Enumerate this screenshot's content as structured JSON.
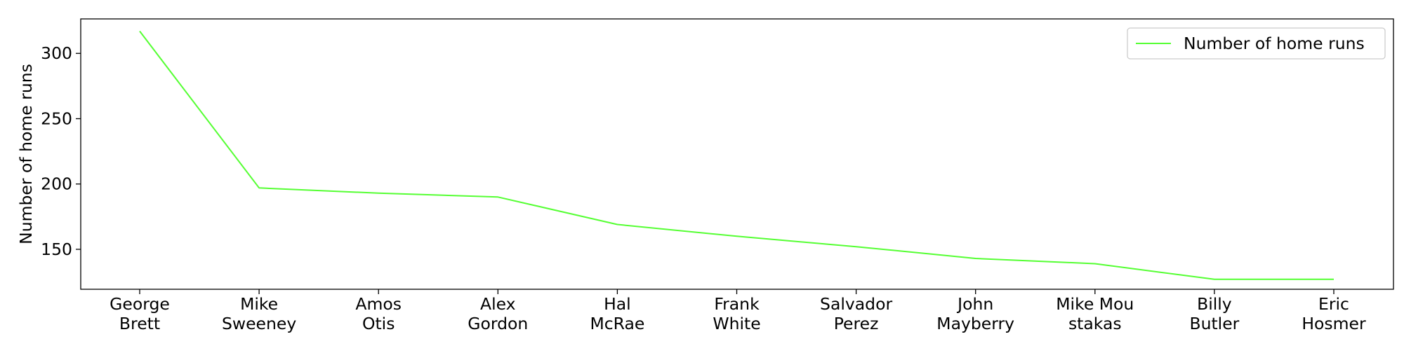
{
  "chart_data": {
    "type": "line",
    "categories": [
      [
        "George",
        "Brett"
      ],
      [
        "Mike",
        "Sweeney"
      ],
      [
        "Amos",
        "Otis"
      ],
      [
        "Alex",
        "Gordon"
      ],
      [
        "Hal",
        "McRae"
      ],
      [
        "Frank",
        "White"
      ],
      [
        "Salvador",
        "Perez"
      ],
      [
        "John",
        "Mayberry"
      ],
      [
        "Mike Mou",
        "stakas"
      ],
      [
        "Billy",
        "Butler"
      ],
      [
        "Eric",
        "Hosmer"
      ]
    ],
    "series": [
      {
        "name": "Number of home runs",
        "values": [
          317,
          197,
          193,
          190,
          169,
          160,
          152,
          143,
          139,
          127,
          127
        ],
        "color": "#55ff33"
      }
    ],
    "xlabel": "",
    "ylabel": "Number of home runs",
    "ylim": [
      119.4,
      326.4
    ],
    "yticks": [
      150,
      200,
      250,
      300
    ],
    "grid": false,
    "legend": "top-right"
  }
}
